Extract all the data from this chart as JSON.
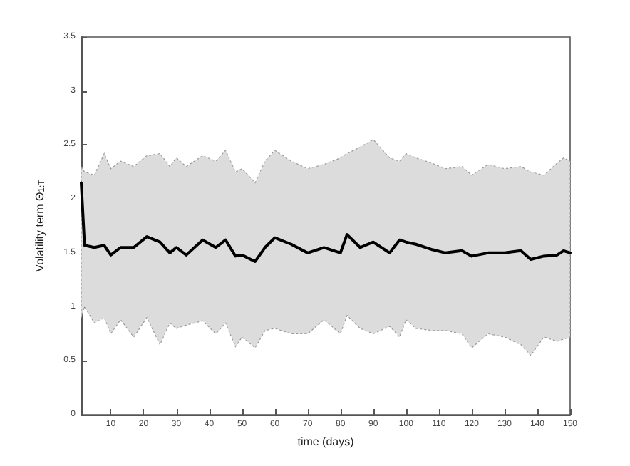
{
  "chart_data": {
    "type": "line",
    "xlabel": "time (days)",
    "ylabel": "Volatility term Θ$_{1:T}$",
    "x": [
      1,
      2,
      5,
      8,
      10,
      13,
      17,
      21,
      25,
      28,
      30,
      33,
      38,
      42,
      45,
      48,
      50,
      54,
      57,
      60,
      65,
      70,
      75,
      80,
      82,
      86,
      90,
      95,
      98,
      100,
      103,
      108,
      112,
      117,
      120,
      125,
      130,
      135,
      138,
      142,
      146,
      148,
      150
    ],
    "series": [
      {
        "color": "#000000",
        "values": [
          2.15,
          1.57,
          1.55,
          1.57,
          1.48,
          1.55,
          1.55,
          1.65,
          1.6,
          1.5,
          1.55,
          1.48,
          1.62,
          1.55,
          1.62,
          1.47,
          1.48,
          1.42,
          1.55,
          1.64,
          1.58,
          1.5,
          1.55,
          1.5,
          1.67,
          1.55,
          1.6,
          1.5,
          1.62,
          1.6,
          1.58,
          1.53,
          1.5,
          1.52,
          1.47,
          1.5,
          1.5,
          1.52,
          1.44,
          1.47,
          1.48,
          1.52,
          1.5
        ],
        "lower": [
          0.9,
          1.0,
          0.85,
          0.9,
          0.75,
          0.88,
          0.72,
          0.9,
          0.65,
          0.85,
          0.8,
          0.83,
          0.87,
          0.75,
          0.85,
          0.63,
          0.72,
          0.62,
          0.78,
          0.8,
          0.75,
          0.75,
          0.88,
          0.75,
          0.92,
          0.8,
          0.75,
          0.82,
          0.72,
          0.88,
          0.8,
          0.78,
          0.78,
          0.75,
          0.62,
          0.75,
          0.72,
          0.65,
          0.55,
          0.72,
          0.68,
          0.7,
          0.72
        ],
        "upper": [
          2.3,
          2.25,
          2.22,
          2.42,
          2.28,
          2.35,
          2.3,
          2.4,
          2.42,
          2.3,
          2.38,
          2.3,
          2.4,
          2.35,
          2.45,
          2.25,
          2.28,
          2.15,
          2.35,
          2.45,
          2.35,
          2.28,
          2.32,
          2.38,
          2.42,
          2.48,
          2.55,
          2.38,
          2.35,
          2.42,
          2.38,
          2.33,
          2.28,
          2.3,
          2.22,
          2.32,
          2.28,
          2.3,
          2.25,
          2.22,
          2.33,
          2.38,
          2.35
        ]
      }
    ],
    "xlim": [
      1,
      150
    ],
    "xticks": [
      10,
      20,
      30,
      40,
      50,
      60,
      70,
      80,
      90,
      100,
      110,
      120,
      130,
      140,
      150
    ],
    "ylim": [
      0,
      3.5
    ],
    "yticks": [
      0,
      0.5,
      1,
      1.5,
      2,
      2.5,
      3,
      3.5
    ],
    "grid": false,
    "marker": "none",
    "line_style": "solid"
  }
}
